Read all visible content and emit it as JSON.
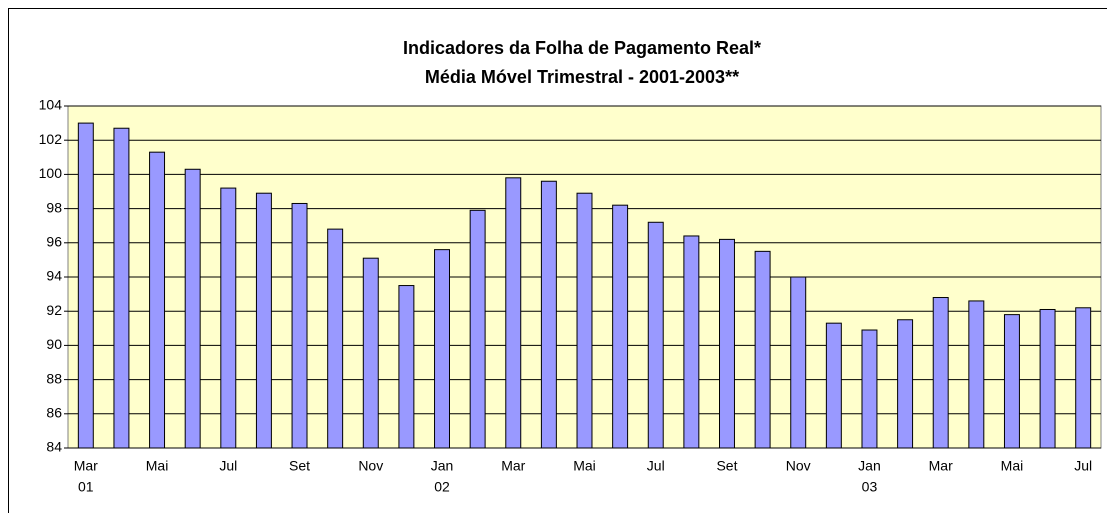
{
  "chart_data": {
    "type": "bar",
    "title": "Indicadores da Folha de Pagamento Real*",
    "subtitle": "Média Móvel Trimestral - 2001-2003**",
    "categories": [
      "Mar",
      null,
      "Mai",
      null,
      "Jul",
      null,
      "Set",
      null,
      "Nov",
      null,
      "Jan",
      null,
      "Mar",
      null,
      "Mai",
      null,
      "Jul",
      null,
      "Set",
      null,
      "Nov",
      null,
      "Jan",
      null,
      "Mar",
      null,
      "Mai",
      null,
      "Jul"
    ],
    "category_years": [
      "01",
      null,
      null,
      null,
      null,
      null,
      null,
      null,
      null,
      null,
      "02",
      null,
      null,
      null,
      null,
      null,
      null,
      null,
      null,
      null,
      null,
      null,
      "03",
      null,
      null,
      null,
      null,
      null,
      null
    ],
    "values": [
      103.0,
      102.7,
      101.3,
      100.3,
      99.2,
      98.9,
      98.3,
      96.8,
      95.1,
      93.5,
      95.6,
      97.9,
      99.8,
      99.6,
      98.9,
      98.2,
      97.2,
      96.4,
      96.2,
      95.5,
      94.0,
      91.3,
      90.9,
      91.5,
      92.8,
      92.6,
      91.8,
      92.1,
      92.2
    ],
    "color": "#9999ff",
    "ylim": [
      84,
      104
    ],
    "yticks": [
      84,
      86,
      88,
      90,
      92,
      94,
      96,
      98,
      100,
      102,
      104
    ],
    "grid": true
  }
}
